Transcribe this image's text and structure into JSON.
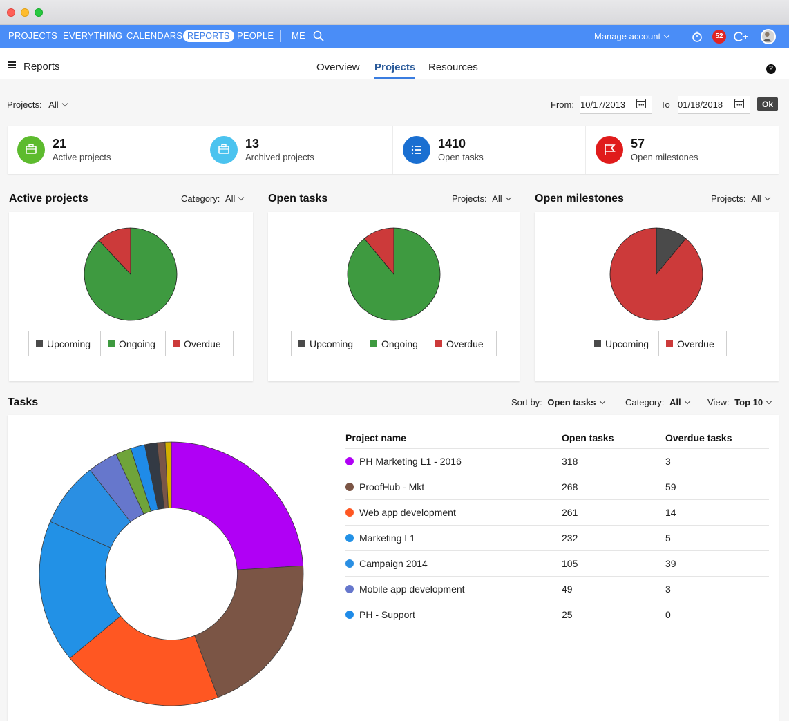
{
  "nav": {
    "items": [
      "PROJECTS",
      "EVERYTHING",
      "CALENDARS",
      "REPORTS",
      "PEOPLE",
      "ME"
    ],
    "active": "REPORTS",
    "manage_account": "Manage account",
    "notifications_count": "52"
  },
  "header": {
    "title": "Reports",
    "tabs": [
      "Overview",
      "Projects",
      "Resources"
    ],
    "active_tab": "Projects"
  },
  "filters": {
    "projects_label": "Projects:",
    "projects_value": "All",
    "from_label": "From:",
    "from_date": "10/17/2013",
    "to_label": "To",
    "to_date": "01/18/2018",
    "ok_label": "Ok"
  },
  "stats": [
    {
      "value": "21",
      "label": "Active projects",
      "color": "#5dbb2e"
    },
    {
      "value": "13",
      "label": "Archived projects",
      "color": "#4bc3ef"
    },
    {
      "value": "1410",
      "label": "Open tasks",
      "color": "#1a6fd1"
    },
    {
      "value": "57",
      "label": "Open milestones",
      "color": "#e01b1b"
    }
  ],
  "sections": {
    "active_projects": {
      "title": "Active projects",
      "filter_label": "Category:",
      "filter_value": "All"
    },
    "open_tasks": {
      "title": "Open tasks",
      "filter_label": "Projects:",
      "filter_value": "All"
    },
    "open_milestones": {
      "title": "Open milestones",
      "filter_label": "Projects:",
      "filter_value": "All"
    },
    "tasks": {
      "title": "Tasks",
      "sort_label": "Sort by:",
      "sort_value": "Open tasks",
      "category_label": "Category:",
      "category_value": "All",
      "view_label": "View:",
      "view_value": "Top 10"
    }
  },
  "chart_data": [
    {
      "type": "pie",
      "categories": [
        "Upcoming",
        "Ongoing",
        "Overdue"
      ],
      "values": [
        0,
        88,
        12
      ],
      "colors": [
        "#4a4a4a",
        "#3e9a40",
        "#cc3a3a"
      ]
    },
    {
      "type": "pie",
      "categories": [
        "Upcoming",
        "Ongoing",
        "Overdue"
      ],
      "values": [
        0,
        89,
        11
      ],
      "colors": [
        "#4a4a4a",
        "#3e9a40",
        "#cc3a3a"
      ]
    },
    {
      "type": "pie",
      "categories": [
        "Upcoming",
        "Overdue"
      ],
      "values": [
        11,
        89
      ],
      "colors": [
        "#4a4a4a",
        "#cc3a3a"
      ]
    },
    {
      "type": "donut",
      "categories": [
        "PH Marketing L1 - 2016",
        "ProofHub - Mkt",
        "Web app development",
        "Marketing L1",
        "Campaign 2014",
        "Mobile app development",
        "PH - Support",
        "",
        "",
        "",
        ""
      ],
      "values": [
        318,
        268,
        261,
        232,
        105,
        49,
        25,
        23,
        20,
        13,
        10
      ],
      "colors": [
        "#b000f5",
        "#7b5545",
        "#ff5722",
        "#2291e6",
        "#2a8fe3",
        "#6677cc",
        "#6fa43a",
        "#1f8be8",
        "#333a44",
        "#795548",
        "#d4b000"
      ]
    }
  ],
  "tasks_table": {
    "headers": [
      "Project name",
      "Open tasks",
      "Overdue tasks"
    ],
    "rows": [
      {
        "name": "PH Marketing L1 - 2016",
        "open": "318",
        "overdue": "3",
        "color": "#b000f5"
      },
      {
        "name": "ProofHub - Mkt",
        "open": "268",
        "overdue": "59",
        "color": "#7b5545"
      },
      {
        "name": "Web app development",
        "open": "261",
        "overdue": "14",
        "color": "#ff5722"
      },
      {
        "name": "Marketing L1",
        "open": "232",
        "overdue": "5",
        "color": "#2291e6"
      },
      {
        "name": "Campaign 2014",
        "open": "105",
        "overdue": "39",
        "color": "#2a8fe3"
      },
      {
        "name": "Mobile app development",
        "open": "49",
        "overdue": "3",
        "color": "#6677cc"
      },
      {
        "name": "PH - Support",
        "open": "25",
        "overdue": "0",
        "color": "#1f8be8"
      }
    ]
  }
}
